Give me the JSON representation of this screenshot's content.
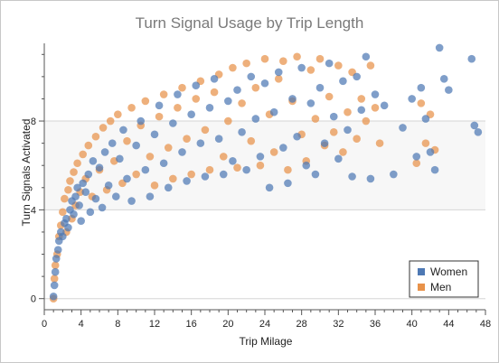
{
  "chart_data": {
    "type": "scatter",
    "title": "Turn Signal Usage by Trip Length",
    "xlabel": "Trip Milage",
    "ylabel": "Turn Signals Activated",
    "xlim": [
      0,
      48
    ],
    "ylim": [
      -0.5,
      11.5
    ],
    "x_ticks": [
      "0",
      "4",
      "8",
      "12",
      "16",
      "20",
      "24",
      "28",
      "32",
      "36",
      "40",
      "44",
      "48"
    ],
    "y_ticks": [
      "0",
      "4",
      "8"
    ],
    "grid": "horizontal",
    "legend_placement": "bottom-right",
    "series": [
      {
        "name": "Women",
        "color": "#4e79b4",
        "points": [
          [
            1.0,
            0.1
          ],
          [
            1.1,
            0.6
          ],
          [
            1.2,
            1.2
          ],
          [
            1.3,
            1.8
          ],
          [
            1.5,
            2.2
          ],
          [
            1.6,
            2.6
          ],
          [
            1.8,
            3.0
          ],
          [
            2.0,
            2.8
          ],
          [
            2.2,
            3.4
          ],
          [
            2.4,
            3.6
          ],
          [
            2.6,
            3.2
          ],
          [
            2.8,
            4.0
          ],
          [
            3.0,
            4.4
          ],
          [
            3.2,
            3.8
          ],
          [
            3.4,
            4.6
          ],
          [
            3.6,
            5.0
          ],
          [
            3.8,
            4.2
          ],
          [
            4.0,
            3.5
          ],
          [
            4.2,
            5.2
          ],
          [
            4.5,
            4.8
          ],
          [
            4.8,
            5.6
          ],
          [
            5.0,
            3.9
          ],
          [
            5.3,
            6.2
          ],
          [
            5.6,
            4.5
          ],
          [
            6.0,
            5.9
          ],
          [
            6.3,
            4.1
          ],
          [
            6.6,
            6.6
          ],
          [
            7.0,
            5.1
          ],
          [
            7.4,
            7.0
          ],
          [
            7.8,
            4.6
          ],
          [
            8.2,
            6.3
          ],
          [
            8.6,
            7.6
          ],
          [
            9.0,
            5.4
          ],
          [
            9.5,
            4.4
          ],
          [
            10.0,
            6.9
          ],
          [
            10.5,
            8.0
          ],
          [
            11.0,
            5.8
          ],
          [
            11.5,
            4.6
          ],
          [
            12.0,
            7.4
          ],
          [
            12.5,
            8.7
          ],
          [
            13.0,
            6.1
          ],
          [
            13.5,
            5.0
          ],
          [
            14.0,
            7.9
          ],
          [
            14.5,
            9.2
          ],
          [
            15.0,
            6.6
          ],
          [
            15.5,
            5.3
          ],
          [
            16.0,
            8.3
          ],
          [
            16.5,
            9.6
          ],
          [
            17.0,
            7.0
          ],
          [
            17.5,
            5.5
          ],
          [
            18.0,
            8.6
          ],
          [
            18.5,
            9.9
          ],
          [
            19.0,
            7.2
          ],
          [
            19.5,
            5.6
          ],
          [
            20.0,
            8.9
          ],
          [
            20.5,
            6.2
          ],
          [
            21.0,
            9.4
          ],
          [
            21.5,
            7.5
          ],
          [
            22.0,
            5.8
          ],
          [
            22.5,
            10.0
          ],
          [
            23.0,
            8.1
          ],
          [
            23.5,
            6.4
          ],
          [
            24.0,
            9.7
          ],
          [
            24.5,
            5.0
          ],
          [
            25.0,
            8.4
          ],
          [
            25.5,
            10.2
          ],
          [
            26.0,
            6.8
          ],
          [
            26.5,
            5.2
          ],
          [
            27.0,
            9.0
          ],
          [
            27.5,
            7.3
          ],
          [
            28.0,
            10.4
          ],
          [
            28.5,
            6.0
          ],
          [
            29.0,
            8.8
          ],
          [
            29.5,
            5.6
          ],
          [
            30.0,
            9.5
          ],
          [
            30.5,
            7.0
          ],
          [
            31.0,
            10.6
          ],
          [
            31.5,
            8.2
          ],
          [
            32.0,
            6.3
          ],
          [
            32.5,
            9.8
          ],
          [
            33.0,
            7.6
          ],
          [
            33.5,
            5.5
          ],
          [
            34.0,
            10.0
          ],
          [
            34.5,
            8.5
          ],
          [
            35.0,
            10.9
          ],
          [
            35.5,
            5.4
          ],
          [
            36.0,
            9.2
          ],
          [
            37.0,
            8.7
          ],
          [
            38.0,
            5.6
          ],
          [
            39.0,
            7.7
          ],
          [
            40.0,
            9.0
          ],
          [
            40.5,
            6.4
          ],
          [
            41.0,
            9.5
          ],
          [
            41.5,
            8.1
          ],
          [
            42.0,
            6.6
          ],
          [
            42.5,
            5.8
          ],
          [
            43.0,
            11.3
          ],
          [
            43.5,
            9.9
          ],
          [
            44.0,
            9.4
          ],
          [
            46.5,
            10.8
          ],
          [
            46.8,
            7.8
          ],
          [
            47.2,
            7.5
          ]
        ]
      },
      {
        "name": "Men",
        "color": "#e8924a",
        "points": [
          [
            1.0,
            0.0
          ],
          [
            1.1,
            0.9
          ],
          [
            1.2,
            1.5
          ],
          [
            1.4,
            2.0
          ],
          [
            1.6,
            2.8
          ],
          [
            1.8,
            3.3
          ],
          [
            2.0,
            3.9
          ],
          [
            2.2,
            4.5
          ],
          [
            2.4,
            3.0
          ],
          [
            2.6,
            4.9
          ],
          [
            2.8,
            5.3
          ],
          [
            3.0,
            3.6
          ],
          [
            3.2,
            5.7
          ],
          [
            3.4,
            4.2
          ],
          [
            3.6,
            6.1
          ],
          [
            3.9,
            4.8
          ],
          [
            4.2,
            6.5
          ],
          [
            4.5,
            5.4
          ],
          [
            4.8,
            6.9
          ],
          [
            5.2,
            4.6
          ],
          [
            5.6,
            7.3
          ],
          [
            6.0,
            5.8
          ],
          [
            6.4,
            7.7
          ],
          [
            6.8,
            4.9
          ],
          [
            7.2,
            8.0
          ],
          [
            7.6,
            6.2
          ],
          [
            8.0,
            8.3
          ],
          [
            8.5,
            5.2
          ],
          [
            9.0,
            7.1
          ],
          [
            9.5,
            8.6
          ],
          [
            10.0,
            5.6
          ],
          [
            10.5,
            7.8
          ],
          [
            11.0,
            8.9
          ],
          [
            11.5,
            6.4
          ],
          [
            12.0,
            5.1
          ],
          [
            12.5,
            8.2
          ],
          [
            13.0,
            9.2
          ],
          [
            13.5,
            6.8
          ],
          [
            14.0,
            5.4
          ],
          [
            14.5,
            8.6
          ],
          [
            15.0,
            9.5
          ],
          [
            15.5,
            7.2
          ],
          [
            16.0,
            5.6
          ],
          [
            16.5,
            9.0
          ],
          [
            17.0,
            9.8
          ],
          [
            17.5,
            7.6
          ],
          [
            18.0,
            5.8
          ],
          [
            18.5,
            9.3
          ],
          [
            19.0,
            10.1
          ],
          [
            19.5,
            6.4
          ],
          [
            20.0,
            8.0
          ],
          [
            20.5,
            10.4
          ],
          [
            21.0,
            5.9
          ],
          [
            21.5,
            8.8
          ],
          [
            22.0,
            10.6
          ],
          [
            22.5,
            7.1
          ],
          [
            23.0,
            9.5
          ],
          [
            23.5,
            6.0
          ],
          [
            24.0,
            10.8
          ],
          [
            24.5,
            8.3
          ],
          [
            25.0,
            6.6
          ],
          [
            25.5,
            9.9
          ],
          [
            26.0,
            10.7
          ],
          [
            26.5,
            5.8
          ],
          [
            27.0,
            8.9
          ],
          [
            27.5,
            10.9
          ],
          [
            28.0,
            7.4
          ],
          [
            28.5,
            6.2
          ],
          [
            29.0,
            10.3
          ],
          [
            29.5,
            8.1
          ],
          [
            30.0,
            10.8
          ],
          [
            30.5,
            6.9
          ],
          [
            31.0,
            9.1
          ],
          [
            31.5,
            7.5
          ],
          [
            32.0,
            10.5
          ],
          [
            32.5,
            6.6
          ],
          [
            33.0,
            8.4
          ],
          [
            33.5,
            10.2
          ],
          [
            34.0,
            7.2
          ],
          [
            34.5,
            9.0
          ],
          [
            35.0,
            8.0
          ],
          [
            35.5,
            10.5
          ],
          [
            36.0,
            8.6
          ],
          [
            36.5,
            7.0
          ],
          [
            41.0,
            8.8
          ],
          [
            41.5,
            7.0
          ],
          [
            42.0,
            8.3
          ],
          [
            42.5,
            6.7
          ],
          [
            40.5,
            6.1
          ]
        ]
      }
    ]
  }
}
